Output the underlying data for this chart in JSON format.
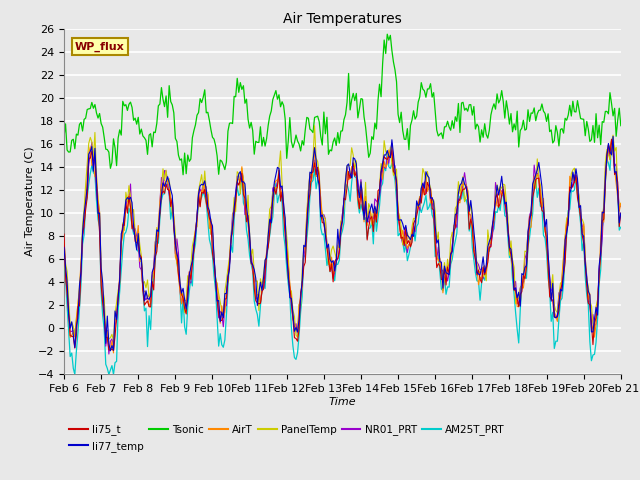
{
  "title": "Air Temperatures",
  "xlabel": "Time",
  "ylabel": "Air Temperature (C)",
  "ylim": [
    -4,
    26
  ],
  "xlim": [
    0,
    360
  ],
  "background_color": "#e8e8e8",
  "plot_bg_color": "#e8e8e8",
  "grid_color": "#ffffff",
  "series": {
    "li75_t": {
      "color": "#cc0000",
      "lw": 0.8
    },
    "li77_temp": {
      "color": "#0000cc",
      "lw": 0.8
    },
    "Tsonic": {
      "color": "#00cc00",
      "lw": 0.9
    },
    "AirT": {
      "color": "#ff8800",
      "lw": 0.8
    },
    "PanelTemp": {
      "color": "#cccc00",
      "lw": 0.8
    },
    "NR01_PRT": {
      "color": "#9900cc",
      "lw": 0.8
    },
    "AM25T_PRT": {
      "color": "#00cccc",
      "lw": 0.9
    }
  },
  "xtick_labels": [
    "Feb 6",
    "Feb 7",
    "Feb 8",
    "Feb 9",
    "Feb 10",
    "Feb 11",
    "Feb 12",
    "Feb 13",
    "Feb 14",
    "Feb 15",
    "Feb 16",
    "Feb 17",
    "Feb 18",
    "Feb 19",
    "Feb 20",
    "Feb 21"
  ],
  "xtick_positions": [
    0,
    24,
    48,
    72,
    96,
    120,
    144,
    168,
    192,
    216,
    240,
    264,
    288,
    312,
    336,
    360
  ],
  "annotation_text": "WP_flux",
  "annotation_color": "#880000",
  "annotation_bg": "#ffffaa",
  "annotation_border": "#aa8800"
}
